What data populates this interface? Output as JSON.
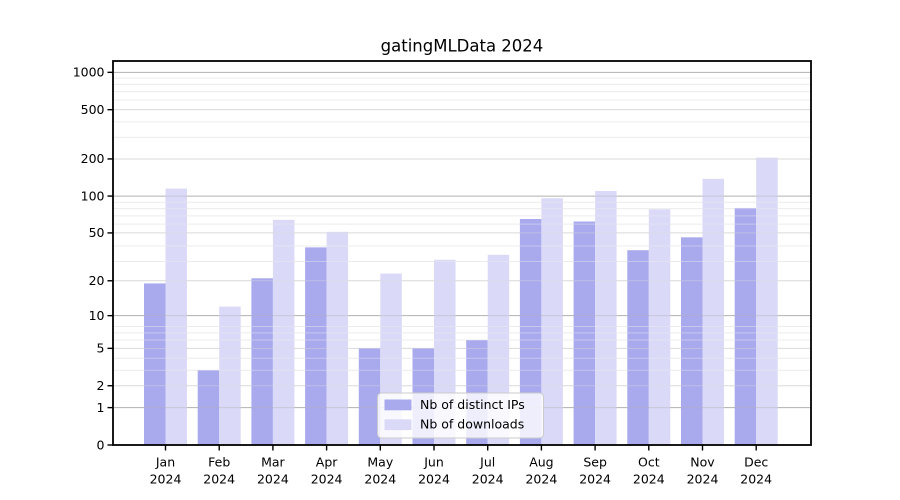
{
  "title": "gatingMLData 2024",
  "chart_data": {
    "type": "bar",
    "title": "gatingMLData 2024",
    "categories": [
      "Jan 2024",
      "Feb 2024",
      "Mar 2024",
      "Apr 2024",
      "May 2024",
      "Jun 2024",
      "Jul 2024",
      "Aug 2024",
      "Sep 2024",
      "Oct 2024",
      "Nov 2024",
      "Dec 2024"
    ],
    "x_tick_months": [
      "Jan",
      "Feb",
      "Mar",
      "Apr",
      "May",
      "Jun",
      "Jul",
      "Aug",
      "Sep",
      "Oct",
      "Nov",
      "Dec"
    ],
    "x_tick_year": "2024",
    "series": [
      {
        "name": "Nb of distinct IPs",
        "color": "#a9a9ee",
        "values": [
          19,
          3,
          21,
          38,
          5,
          5,
          6,
          65,
          62,
          36,
          46,
          80
        ]
      },
      {
        "name": "Nb of downloads",
        "color": "#dadaf8",
        "values": [
          115,
          12,
          64,
          51,
          23,
          30,
          33,
          96,
          110,
          78,
          138,
          205
        ]
      }
    ],
    "y_ticks": [
      0,
      1,
      2,
      5,
      10,
      20,
      50,
      100,
      200,
      500,
      1000
    ],
    "y_scale": "log10(1+value)",
    "ylim": [
      0,
      1240
    ],
    "grid": "on",
    "grid_emphasized_at": [
      1,
      10,
      100,
      1000
    ],
    "legend_position": "lower center",
    "legend_entries": [
      "Nb of distinct IPs",
      "Nb of downloads"
    ]
  },
  "colors": {
    "background": "#ffffff",
    "spine": "#000000",
    "grid_major": "#b1b1b1",
    "grid_tick": "#d9d9d9",
    "grid_minor": "#ececec",
    "legend_border": "#cbcbcb",
    "bar_distinct_ips": "#a9a9ee",
    "bar_downloads": "#dadaf8"
  }
}
